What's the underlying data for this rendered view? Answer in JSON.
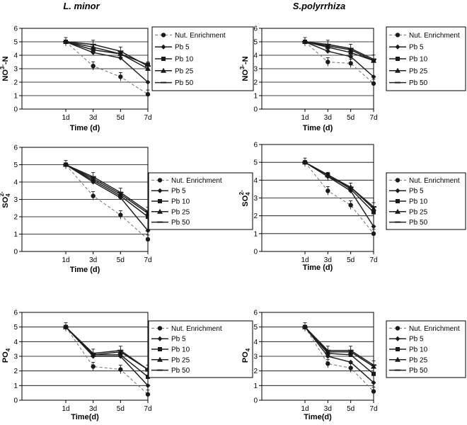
{
  "chart_data": [
    {
      "type": "line",
      "title": "L. minor",
      "xlabel": "Time (d)",
      "ylabel_main": "NO",
      "ylabel_sup": "3-",
      "ylabel_post": "-N",
      "categories": [
        "1d",
        "3d",
        "5d",
        "7d"
      ],
      "ylim": [
        0,
        6
      ],
      "yticks": [
        "0",
        "1",
        "2",
        "3",
        "4",
        "5",
        "6"
      ],
      "grid": true,
      "series": [
        {
          "name": "Nut. Enrichment",
          "values": [
            5.0,
            3.2,
            2.4,
            1.1
          ]
        },
        {
          "name": "Pb 5",
          "values": [
            5.0,
            4.2,
            3.8,
            2.0
          ]
        },
        {
          "name": "Pb 10",
          "values": [
            5.0,
            4.4,
            4.1,
            3.3
          ]
        },
        {
          "name": "Pb 25",
          "values": [
            5.0,
            4.6,
            4.1,
            3.0
          ]
        },
        {
          "name": "Pb 50",
          "values": [
            5.0,
            4.8,
            4.3,
            3.2
          ]
        }
      ]
    },
    {
      "type": "line",
      "title": "S.polyrrhiza",
      "xlabel": "Time (d)",
      "ylabel_main": "NO",
      "ylabel_sup": "3-",
      "ylabel_post": "-N",
      "categories": [
        "1d",
        "3d",
        "5d",
        "7d"
      ],
      "ylim": [
        0,
        6
      ],
      "yticks": [
        "0",
        "1",
        "2",
        "3",
        "4",
        "5",
        "6"
      ],
      "grid": true,
      "series": [
        {
          "name": "Nut. Enrichment",
          "values": [
            5.0,
            3.5,
            3.4,
            1.9
          ]
        },
        {
          "name": "Pb 5",
          "values": [
            5.0,
            4.3,
            3.9,
            2.4
          ]
        },
        {
          "name": "Pb 10",
          "values": [
            5.0,
            4.6,
            4.2,
            3.6
          ]
        },
        {
          "name": "Pb 25",
          "values": [
            5.0,
            4.7,
            4.4,
            3.6
          ]
        },
        {
          "name": "Pb 50",
          "values": [
            5.0,
            4.8,
            4.5,
            3.7
          ]
        }
      ]
    },
    {
      "type": "line",
      "title": "",
      "xlabel": "Time (d)",
      "ylabel_main": "SO",
      "ylabel_sup": "2-",
      "ylabel_sub": "4",
      "categories": [
        "1d",
        "3d",
        "5d",
        "7d"
      ],
      "ylim": [
        0,
        6
      ],
      "yticks": [
        "0",
        "1",
        "2",
        "3",
        "4",
        "5",
        "6"
      ],
      "grid": true,
      "series": [
        {
          "name": "Nut. Enrichment",
          "values": [
            5.0,
            3.2,
            2.1,
            0.7
          ]
        },
        {
          "name": "Pb 5",
          "values": [
            5.0,
            4.0,
            3.1,
            1.2
          ]
        },
        {
          "name": "Pb 10",
          "values": [
            5.0,
            4.1,
            3.2,
            2.0
          ]
        },
        {
          "name": "Pb 25",
          "values": [
            5.0,
            4.2,
            3.3,
            2.2
          ]
        },
        {
          "name": "Pb 50",
          "values": [
            5.0,
            4.3,
            3.4,
            2.3
          ]
        }
      ]
    },
    {
      "type": "line",
      "title": "",
      "xlabel": "Time (d)",
      "ylabel_main": "SO",
      "ylabel_sup": "2-",
      "ylabel_sub": "4",
      "categories": [
        "1d",
        "3d",
        "5d",
        "7d"
      ],
      "ylim": [
        0,
        6
      ],
      "yticks": [
        "0",
        "1",
        "2",
        "3",
        "4",
        "5",
        "6"
      ],
      "grid": true,
      "series": [
        {
          "name": "Nut. Enrichment",
          "values": [
            5.0,
            3.4,
            2.6,
            1.0
          ]
        },
        {
          "name": "Pb 5",
          "values": [
            5.0,
            4.2,
            3.4,
            1.4
          ]
        },
        {
          "name": "Pb 10",
          "values": [
            5.0,
            4.3,
            3.5,
            2.2
          ]
        },
        {
          "name": "Pb 25",
          "values": [
            5.0,
            4.3,
            3.6,
            2.4
          ]
        },
        {
          "name": "Pb 50",
          "values": [
            5.0,
            4.2,
            3.6,
            2.5
          ]
        }
      ]
    },
    {
      "type": "line",
      "title": "",
      "xlabel": "Time(d)",
      "ylabel_main": "PO",
      "ylabel_sub": "4",
      "categories": [
        "1d",
        "3d",
        "5d",
        "7d"
      ],
      "ylim": [
        0,
        6
      ],
      "yticks": [
        "0",
        "1",
        "2",
        "3",
        "4",
        "5",
        "6"
      ],
      "grid": true,
      "series": [
        {
          "name": "Nut. Enrichment",
          "values": [
            5.0,
            2.3,
            2.1,
            0.4
          ]
        },
        {
          "name": "Pb 5",
          "values": [
            5.0,
            3.0,
            3.0,
            1.0
          ]
        },
        {
          "name": "Pb 10",
          "values": [
            5.0,
            3.1,
            3.1,
            1.6
          ]
        },
        {
          "name": "Pb 25",
          "values": [
            5.0,
            3.1,
            3.3,
            2.1
          ]
        },
        {
          "name": "Pb 50",
          "values": [
            5.0,
            3.2,
            3.4,
            2.1
          ]
        }
      ]
    },
    {
      "type": "line",
      "title": "",
      "xlabel": "Time(d)",
      "ylabel_main": "PO",
      "ylabel_sub": "4",
      "categories": [
        "1d",
        "3d",
        "5d",
        "7d"
      ],
      "ylim": [
        0,
        6
      ],
      "yticks": [
        "0",
        "1",
        "2",
        "3",
        "4",
        "5",
        "6"
      ],
      "grid": true,
      "series": [
        {
          "name": "Nut. Enrichment",
          "values": [
            5.0,
            2.5,
            2.2,
            0.6
          ]
        },
        {
          "name": "Pb 5",
          "values": [
            5.0,
            3.0,
            2.6,
            1.2
          ]
        },
        {
          "name": "Pb 10",
          "values": [
            5.0,
            3.2,
            3.1,
            1.8
          ]
        },
        {
          "name": "Pb 25",
          "values": [
            5.0,
            3.3,
            3.3,
            2.3
          ]
        },
        {
          "name": "Pb 50",
          "values": [
            5.0,
            3.4,
            3.4,
            2.4
          ]
        }
      ]
    }
  ]
}
